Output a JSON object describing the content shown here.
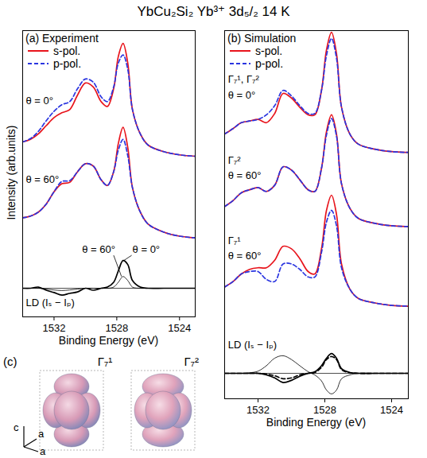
{
  "title": "YbCu₂Si₂  Yb³⁺ 3d₅/₂ 14 K",
  "chart_data": [
    {
      "type": "line",
      "title": "(a) Experiment",
      "x_label": "Binding Energy (eV)",
      "y_label": "Intensity (arb.units)",
      "xlim": [
        1534,
        1523
      ],
      "xticks": [
        1532,
        1528,
        1524
      ],
      "ylim": [
        0,
        10
      ],
      "tick_labels": "x",
      "legend": "upper left",
      "ld_zero": 1.0,
      "x": [
        1534,
        1533.5,
        1533,
        1532.5,
        1532,
        1531.5,
        1531,
        1530.5,
        1530,
        1529.5,
        1529,
        1528.6,
        1528.2,
        1527.9,
        1527.6,
        1527.3,
        1527,
        1526.5,
        1526,
        1525,
        1524,
        1523
      ],
      "annotations": [
        "θ = 0°",
        "θ = 60°",
        "LD (Iₛ − Iₚ)",
        "θ = 0°",
        "θ = 60°"
      ],
      "series": [
        {
          "name": "s-pol.",
          "color": "#e8141c",
          "line_style": "solid",
          "values": [
            6.11,
            6.2,
            6.39,
            6.68,
            6.96,
            7.13,
            7.24,
            7.75,
            8.17,
            8.03,
            7.52,
            7.35,
            7.97,
            9.1,
            9.55,
            8.87,
            7.24,
            6.39,
            6.0,
            5.77,
            5.66,
            5.61
          ]
        },
        {
          "name": "p-pol.",
          "color": "#2a35e0",
          "line_style": "dashed",
          "values": [
            6.11,
            6.23,
            6.48,
            6.85,
            7.18,
            7.41,
            7.52,
            7.97,
            8.31,
            8.2,
            7.69,
            7.52,
            8.03,
            8.87,
            9.15,
            8.65,
            7.24,
            6.39,
            6.0,
            5.77,
            5.66,
            5.61
          ]
        },
        {
          "name": "s-pol.",
          "color": "#e8141c",
          "line_style": "solid",
          "values": [
            3.46,
            3.52,
            3.66,
            3.94,
            4.37,
            4.65,
            4.7,
            5.07,
            5.35,
            5.27,
            4.79,
            4.59,
            5.07,
            6.06,
            6.62,
            5.92,
            4.51,
            3.66,
            3.24,
            2.96,
            2.82,
            2.76
          ]
        },
        {
          "name": "p-pol.",
          "color": "#2a35e0",
          "line_style": "dashed",
          "values": [
            3.46,
            3.52,
            3.66,
            3.94,
            4.37,
            4.73,
            4.76,
            5.07,
            5.35,
            5.27,
            4.79,
            4.59,
            5.07,
            5.83,
            6.2,
            5.63,
            4.51,
            3.66,
            3.24,
            2.96,
            2.82,
            2.76
          ]
        },
        {
          "color": "#000000",
          "line_style": "solid",
          "values": [
            1.0,
            1.0,
            1.04,
            0.93,
            0.85,
            0.76,
            0.82,
            0.87,
            1.0,
            0.93,
            1.0,
            1.04,
            1.21,
            1.61,
            1.97,
            1.83,
            1.27,
            1.04,
            1.0,
            1.0,
            1.0,
            1.0
          ]
        },
        {
          "color": "#000000",
          "line_style": "thin",
          "values": [
            1.0,
            1.0,
            1.0,
            0.97,
            0.94,
            0.92,
            0.94,
            0.97,
            1.0,
            1.0,
            1.0,
            1.0,
            1.04,
            1.21,
            1.41,
            1.27,
            1.04,
            1.0,
            1.0,
            1.0,
            1.0,
            1.0
          ]
        }
      ]
    },
    {
      "type": "line",
      "title": "(b) Simulation",
      "x_label": "Binding Energy (eV)",
      "xlim": [
        1534,
        1523
      ],
      "xticks": [
        1532,
        1528,
        1524
      ],
      "ylim": [
        -0.6,
        13
      ],
      "tick_labels": "x",
      "legend": "upper left",
      "ld_zero": 0.34,
      "x": [
        1534,
        1533.5,
        1533,
        1532.5,
        1532,
        1531.5,
        1531,
        1530.5,
        1530,
        1529.5,
        1529,
        1528.6,
        1528.2,
        1527.9,
        1527.6,
        1527.3,
        1527,
        1526.5,
        1526,
        1525,
        1524,
        1523
      ],
      "annotations": [
        "Γ₇¹, Γ₇²",
        "θ = 0°",
        "Γ₇²",
        "θ = 60°",
        "Γ₇¹",
        "θ = 60°",
        "LD (Iₛ − Iₚ)"
      ],
      "series": [
        {
          "name": "s-pol.",
          "color": "#e8141c",
          "line_style": "solid",
          "values": [
            9.18,
            9.38,
            9.6,
            9.66,
            9.72,
            9.6,
            9.94,
            10.68,
            10.51,
            10.17,
            9.89,
            9.89,
            10.79,
            12.29,
            12.94,
            12.15,
            10.17,
            9.18,
            8.81,
            8.62,
            8.53,
            8.5
          ]
        },
        {
          "name": "p-pol.",
          "color": "#2a35e0",
          "line_style": "dashed",
          "values": [
            9.18,
            9.38,
            9.6,
            9.66,
            9.72,
            9.89,
            10.23,
            10.79,
            10.59,
            10.23,
            9.94,
            9.94,
            10.79,
            12.09,
            12.71,
            11.98,
            10.17,
            9.18,
            8.81,
            8.62,
            8.53,
            8.5
          ]
        },
        {
          "name": "s-pol.",
          "color": "#e8141c",
          "line_style": "solid",
          "values": [
            6.5,
            6.72,
            7.01,
            7.12,
            7.2,
            7.06,
            7.29,
            7.97,
            7.85,
            7.49,
            7.12,
            7.06,
            7.91,
            9.27,
            9.89,
            9.18,
            7.34,
            6.44,
            6.07,
            5.88,
            5.79,
            5.76
          ]
        },
        {
          "name": "p-pol.",
          "color": "#2a35e0",
          "line_style": "dashed",
          "values": [
            6.5,
            6.72,
            7.01,
            7.12,
            7.2,
            7.06,
            7.29,
            7.97,
            7.85,
            7.49,
            7.12,
            7.06,
            7.91,
            9.15,
            9.75,
            9.1,
            7.34,
            6.44,
            6.07,
            5.88,
            5.79,
            5.76
          ]
        },
        {
          "name": "s-pol.",
          "color": "#e8141c",
          "line_style": "solid",
          "values": [
            3.53,
            3.73,
            4.01,
            4.18,
            4.24,
            4.24,
            4.52,
            5.03,
            4.94,
            4.58,
            4.1,
            4.01,
            4.94,
            6.36,
            6.92,
            6.21,
            4.38,
            3.45,
            3.11,
            2.94,
            2.85,
            2.82
          ]
        },
        {
          "name": "p-pol.",
          "color": "#2a35e0",
          "line_style": "dashed",
          "values": [
            3.53,
            3.73,
            4.01,
            4.1,
            4.1,
            3.81,
            3.73,
            4.38,
            4.38,
            4.18,
            3.9,
            3.9,
            4.8,
            5.93,
            6.36,
            5.79,
            4.24,
            3.45,
            3.11,
            2.94,
            2.85,
            2.82
          ]
        },
        {
          "color": "#000000",
          "line_style": "solid",
          "values": [
            0.34,
            0.34,
            0.34,
            0.34,
            0.34,
            0.28,
            0.17,
            0.0,
            0.08,
            0.23,
            0.34,
            0.4,
            0.62,
            0.9,
            1.07,
            0.9,
            0.51,
            0.37,
            0.34,
            0.34,
            0.34,
            0.34
          ]
        },
        {
          "color": "#000000",
          "line_style": "dashed",
          "values": [
            0.34,
            0.34,
            0.34,
            0.34,
            0.34,
            0.31,
            0.25,
            0.14,
            0.17,
            0.28,
            0.34,
            0.37,
            0.56,
            0.85,
            0.96,
            0.85,
            0.48,
            0.36,
            0.34,
            0.34,
            0.34,
            0.34
          ]
        },
        {
          "color": "#000000",
          "line_style": "thin",
          "values": [
            0.34,
            0.34,
            0.34,
            0.36,
            0.42,
            0.62,
            0.9,
            0.99,
            0.85,
            0.62,
            0.4,
            0.28,
            0.06,
            -0.28,
            -0.42,
            -0.28,
            0.14,
            0.28,
            0.34,
            0.34,
            0.34,
            0.34
          ]
        }
      ]
    }
  ],
  "panel_c": {
    "label": "(c)",
    "orbitals": [
      "Γ₇¹",
      "Γ₇²"
    ],
    "axes": [
      "c",
      "a",
      "a"
    ]
  }
}
